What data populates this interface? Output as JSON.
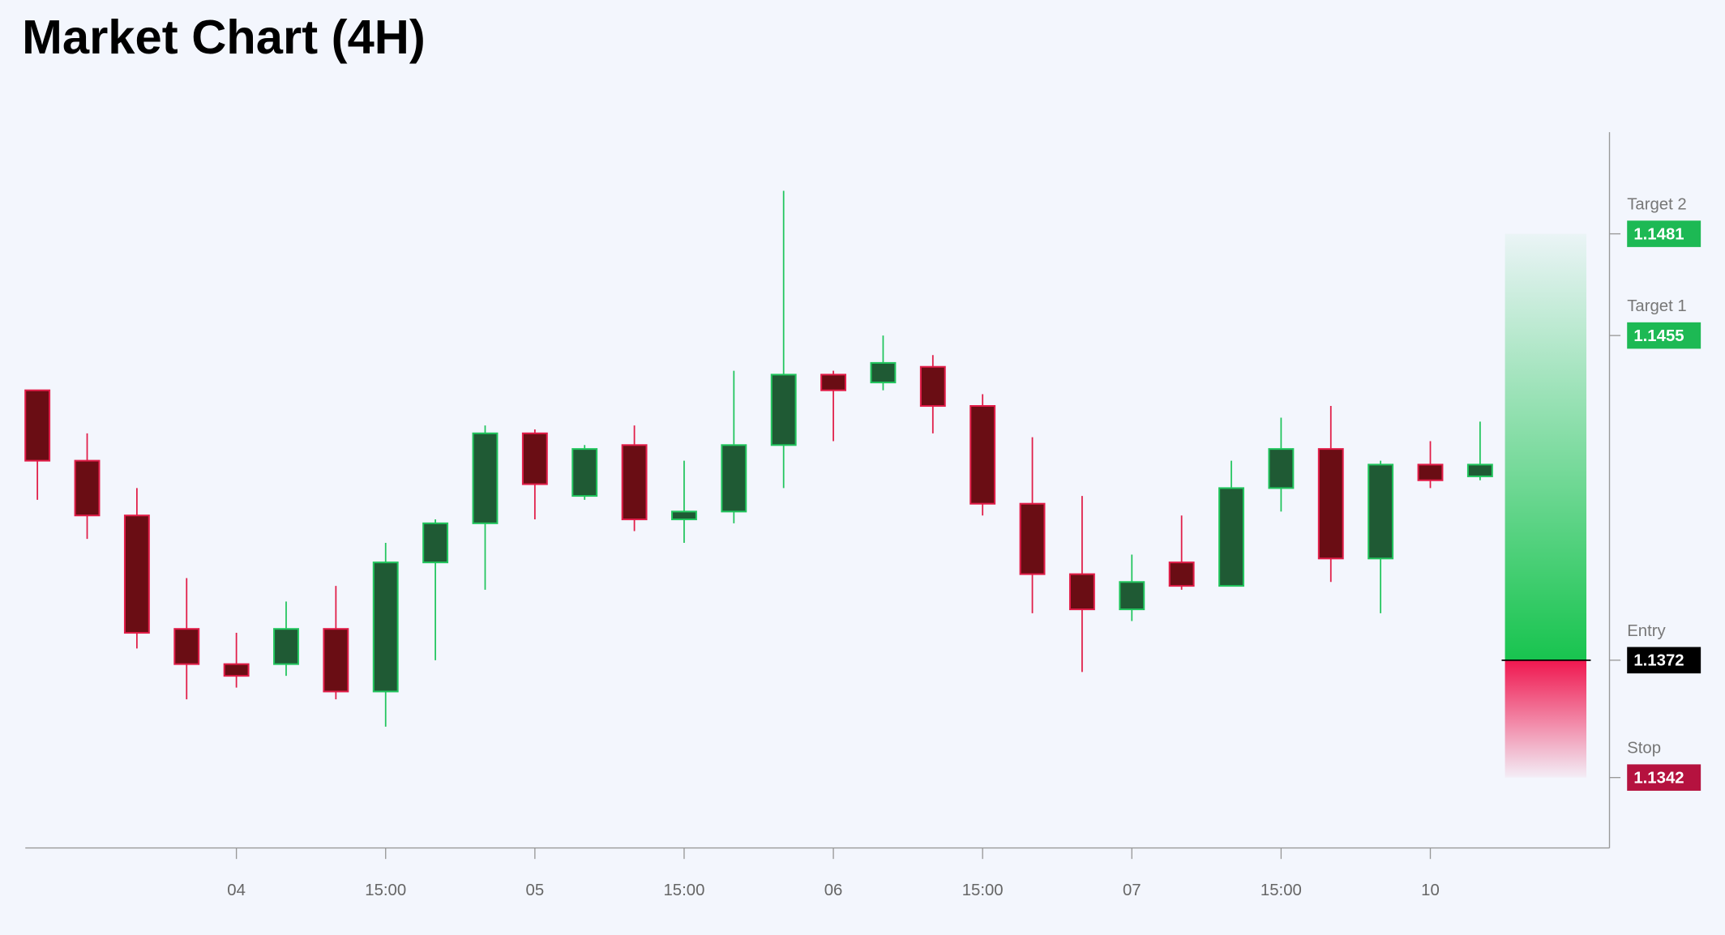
{
  "chart_data": {
    "type": "candlestick",
    "title": "Market Chart (4H)",
    "categories": [
      null,
      null,
      null,
      null,
      "04",
      null,
      null,
      "15:00",
      null,
      null,
      "05",
      null,
      null,
      "15:00",
      null,
      null,
      "06",
      null,
      null,
      "15:00",
      null,
      null,
      "07",
      null,
      null,
      "15:00",
      null,
      null,
      "10",
      null
    ],
    "open": [
      1.1441,
      1.1423,
      1.1409,
      1.138,
      1.1371,
      1.1371,
      1.138,
      1.1364,
      1.1397,
      1.1407,
      1.143,
      1.1414,
      1.1427,
      1.1408,
      1.141,
      1.1427,
      1.1445,
      1.1443,
      1.1447,
      1.1437,
      1.1412,
      1.1394,
      1.1385,
      1.1397,
      1.1391,
      1.1416,
      1.1426,
      1.1398,
      1.1422,
      1.1419
    ],
    "high": [
      1.1441,
      1.143,
      1.1416,
      1.1393,
      1.1379,
      1.1387,
      1.1391,
      1.1402,
      1.1408,
      1.1432,
      1.1431,
      1.1427,
      1.1432,
      1.1423,
      1.1446,
      1.1492,
      1.1446,
      1.1455,
      1.145,
      1.144,
      1.1429,
      1.1414,
      1.1399,
      1.1409,
      1.1423,
      1.1434,
      1.1437,
      1.1423,
      1.1428,
      1.1433
    ],
    "low": [
      1.1413,
      1.1403,
      1.1375,
      1.1362,
      1.1365,
      1.1368,
      1.1362,
      1.1355,
      1.1372,
      1.139,
      1.1408,
      1.1413,
      1.1405,
      1.1402,
      1.1407,
      1.1416,
      1.1428,
      1.1441,
      1.143,
      1.1409,
      1.1384,
      1.1369,
      1.1382,
      1.139,
      1.1391,
      1.141,
      1.1392,
      1.1384,
      1.1416,
      1.1418
    ],
    "close": [
      1.1423,
      1.1409,
      1.1379,
      1.1371,
      1.1368,
      1.138,
      1.1364,
      1.1397,
      1.1407,
      1.143,
      1.1417,
      1.1426,
      1.1408,
      1.141,
      1.1427,
      1.1445,
      1.1441,
      1.1448,
      1.1437,
      1.1412,
      1.1394,
      1.1385,
      1.1392,
      1.1391,
      1.1416,
      1.1426,
      1.1398,
      1.1422,
      1.1418,
      1.1422
    ],
    "up_color": "#22c55e",
    "down_color": "#e11d48",
    "up_fill": "#1f5a34",
    "down_fill": "#6a0d14",
    "ylim": [
      1.1324,
      1.1507
    ],
    "levels": [
      {
        "name": "Target 2",
        "value": 1.1481,
        "color": "#1db954"
      },
      {
        "name": "Target 1",
        "value": 1.1455,
        "color": "#1db954"
      },
      {
        "name": "Entry",
        "value": 1.1372,
        "color": "#000000"
      },
      {
        "name": "Stop",
        "value": 1.1342,
        "color": "#b5123f"
      }
    ]
  }
}
